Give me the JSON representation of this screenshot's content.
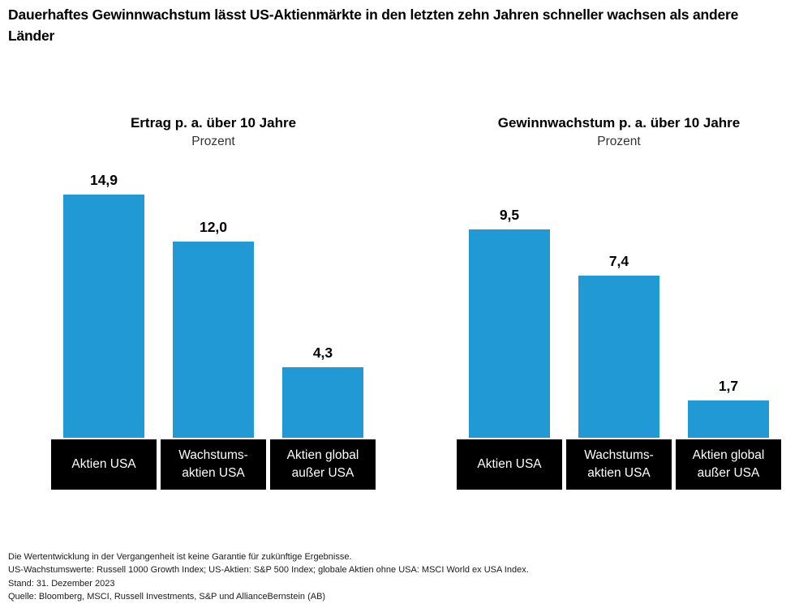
{
  "page": {
    "heading": "Dauerhaftes Gewinnwachstum lässt US-Aktienmärkte in den letzten zehn Jahren schneller wachsen als andere\nLänder"
  },
  "colors": {
    "bar_blue": "#2099D4",
    "label_box_bg": "#000000",
    "label_box_text": "#ffffff"
  },
  "chart_data": [
    {
      "type": "bar",
      "title": "Ertrag p. a. über 10 Jahre",
      "subtitle": "Prozent",
      "ylabel": "Prozent",
      "categories": [
        "Aktien USA",
        "Wachstums-\naktien USA",
        "Aktien global\naußer USA"
      ],
      "values": [
        14.9,
        12.0,
        4.3
      ],
      "value_labels": [
        "14,9",
        "12,0",
        "4,3"
      ],
      "grid": false,
      "legend": false,
      "bar_color": "#2099D4"
    },
    {
      "type": "bar",
      "title": "Gewinnwachstum p. a. über 10 Jahre",
      "subtitle": "Prozent",
      "ylabel": "Prozent",
      "categories": [
        "Aktien USA",
        "Wachstums-\naktien USA",
        "Aktien global\naußer USA"
      ],
      "values": [
        9.5,
        7.4,
        1.7
      ],
      "value_labels": [
        "9,5",
        "7,4",
        "1,7"
      ],
      "grid": false,
      "legend": false,
      "bar_color": "#2099D4"
    }
  ],
  "footnotes": [
    "Die Wertentwicklung in der Vergangenheit ist keine Garantie für zukünftige Ergebnisse.",
    "US-Wachstumswerte: Russell 1000 Growth Index; US-Aktien: S&P 500 Index; globale Aktien ohne USA: MSCI World ex USA Index.",
    "Stand: 31. Dezember 2023",
    "Quelle: Bloomberg, MSCI, Russell Investments, S&P und AllianceBernstein (AB)"
  ]
}
